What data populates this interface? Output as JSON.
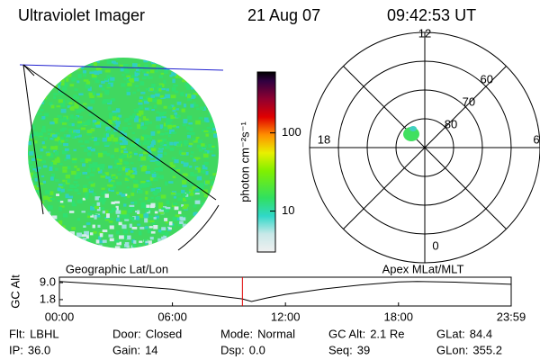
{
  "header": {
    "title": "Ultraviolet Imager",
    "date": "21 Aug 07",
    "time": "09:42:53 UT"
  },
  "colorbar": {
    "label": "photon cm⁻²s⁻¹",
    "log": true,
    "lim": [
      3,
      600
    ],
    "ticks": [
      10,
      100
    ]
  },
  "polar": {
    "lat_lim": 50,
    "lat_rings": [
      80,
      70,
      60
    ],
    "mlt_ticks": [
      12,
      18,
      6,
      0
    ]
  },
  "strip": {
    "left_title": "Geographic Lat/Lon",
    "right_title": "Apex MLat/MLT",
    "ylabel": "GC Alt",
    "xlim": [
      0,
      23.983
    ],
    "ylim": [
      -0.9,
      11.3
    ],
    "xticks": [
      {
        "value": 0,
        "label": "00:00"
      },
      {
        "value": 6,
        "label": "06:00"
      },
      {
        "value": 12,
        "label": "12:00"
      },
      {
        "value": 18,
        "label": "18:00"
      },
      {
        "value": 23.983,
        "label": "23:59"
      }
    ],
    "yticks": [
      {
        "value": 9,
        "label": "9.0"
      },
      {
        "value": 1.8,
        "label": "1.8"
      }
    ],
    "x": [
      0,
      3,
      6,
      8,
      9.715,
      10.2,
      11,
      12,
      14,
      16,
      18,
      19,
      21,
      23.983
    ],
    "values": [
      9.5,
      8.0,
      6.2,
      3.8,
      2.1,
      1.0,
      2.5,
      4.0,
      6.3,
      8.0,
      9.3,
      9.5,
      9.2,
      8.3
    ],
    "marker": 9.715,
    "marker_color": "#e00000",
    "color": "#000000"
  },
  "footer": {
    "rows": [
      [
        {
          "label": "Flt:",
          "value": "LBHL"
        },
        {
          "label": "Door:",
          "value": "Closed"
        },
        {
          "label": "Mode:",
          "value": "Normal"
        },
        {
          "label": "GC Alt:",
          "value": "2.1 Re"
        },
        {
          "label": "GLat:",
          "value": "84.4"
        }
      ],
      [
        {
          "label": "IP:",
          "value": "36.0"
        },
        {
          "label": "Gain:",
          "value": "14"
        },
        {
          "label": "Dsp:",
          "value": "0.0"
        },
        {
          "label": "Seq:",
          "value": "39"
        },
        {
          "label": "GLon:",
          "value": "355.2"
        }
      ]
    ]
  }
}
